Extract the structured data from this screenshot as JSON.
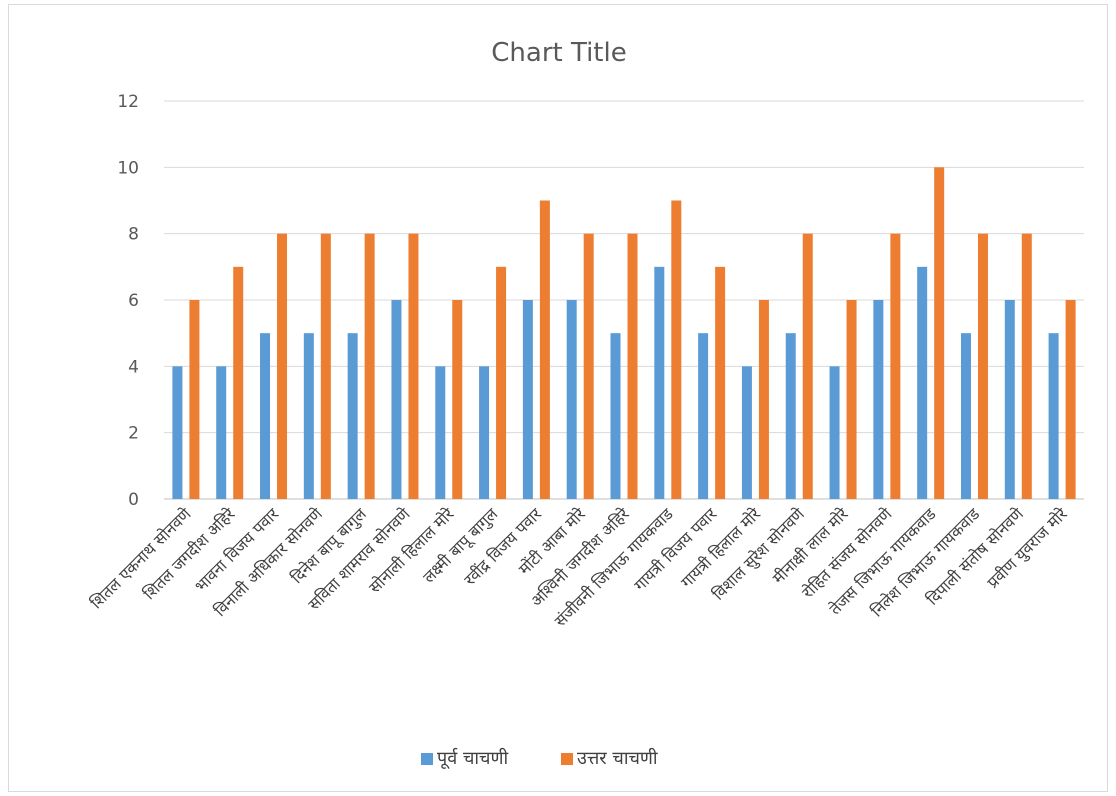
{
  "chart_data": {
    "type": "bar",
    "title": "Chart Title",
    "xlabel": "",
    "ylabel": "",
    "ylim": [
      0,
      12
    ],
    "yticks": [
      "0",
      "2",
      "4",
      "6",
      "8",
      "10",
      "12"
    ],
    "grid": true,
    "legend_position": "bottom",
    "categories": [
      "शितल एकनाथ सोनवणे",
      "शितल जगदीश अहिरे",
      "भावना विजय पवार",
      "विनाली अधिकार सोनवणे",
      "दिनेश बापू बागुल",
      "सविता शामराव सोनवणे",
      "सोनाली हिलाल मोरे",
      "लक्ष्मी बापू बागुल",
      "रवींद्र विजय पवार",
      "मोंटी आबा मोरे",
      "अश्विनी जगदीश अहिरे",
      "संजीवनी जिभाऊ गायकवाड",
      "गायत्री विजय पवार",
      "गायत्री हिलाल मोरे",
      "विशाल सुरेश सोनवणे",
      "मीनाक्षी लाल मोरे",
      "रोहित संजय सोनवणे",
      "तेजस जिभाऊ गायकवाड",
      "निलेश जिभाऊ गायकवाड",
      "दिपाली संतोष सोनवणे",
      "प्रवीण युवराज मोरे"
    ],
    "series": [
      {
        "name": "पूर्व चाचणी",
        "color": "#5b9bd5",
        "values": [
          4,
          4,
          5,
          5,
          5,
          6,
          4,
          4,
          6,
          6,
          5,
          7,
          5,
          4,
          5,
          4,
          6,
          7,
          5,
          6,
          5
        ]
      },
      {
        "name": "उत्तर चाचणी",
        "color": "#ed7d31",
        "values": [
          6,
          7,
          8,
          8,
          8,
          8,
          6,
          7,
          9,
          8,
          8,
          9,
          7,
          6,
          8,
          6,
          8,
          10,
          8,
          8,
          6
        ]
      }
    ]
  }
}
